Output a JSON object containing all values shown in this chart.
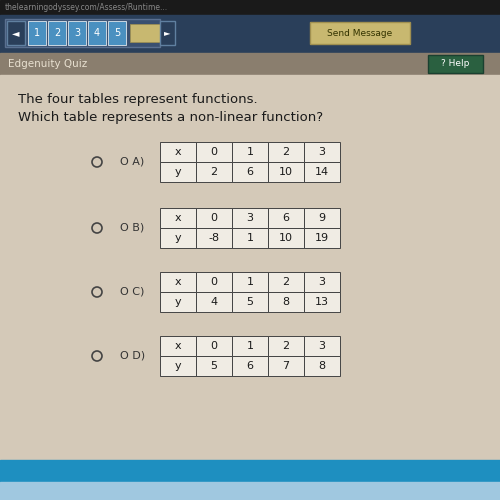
{
  "title_line1": "The four tables represent functions.",
  "title_line2": "Which table represents a non-linear function?",
  "bg_color": "#d4c9b8",
  "nav_bar_color": "#2a3f5a",
  "quiz_bar_color": "#9a8e7e",
  "quiz_bar_color2": "#7a7060",
  "page_bg": "#d4c9b8",
  "options": [
    "A)",
    "B)",
    "C)",
    "D)"
  ],
  "tables": [
    {
      "x_vals": [
        "x",
        "0",
        "1",
        "2",
        "3"
      ],
      "y_vals": [
        "y",
        "2",
        "6",
        "10",
        "14"
      ]
    },
    {
      "x_vals": [
        "x",
        "0",
        "3",
        "6",
        "9"
      ],
      "y_vals": [
        "y",
        "-8",
        "1",
        "10",
        "19"
      ]
    },
    {
      "x_vals": [
        "x",
        "0",
        "1",
        "2",
        "3"
      ],
      "y_vals": [
        "y",
        "4",
        "5",
        "8",
        "13"
      ]
    },
    {
      "x_vals": [
        "x",
        "0",
        "1",
        "2",
        "3"
      ],
      "y_vals": [
        "y",
        "5",
        "6",
        "7",
        "8"
      ]
    }
  ],
  "url_bar_color": "#1a1a1a",
  "send_msg_color": "#c8b870",
  "cell_border": "#444444",
  "cell_bg": "#f0ece4",
  "text_color": "#1a1a1a",
  "radio_color": "#444444",
  "option_color": "#333333",
  "bottom_bar_color": "#1e8fc0",
  "bottom_footer_color": "#a0c8e0"
}
